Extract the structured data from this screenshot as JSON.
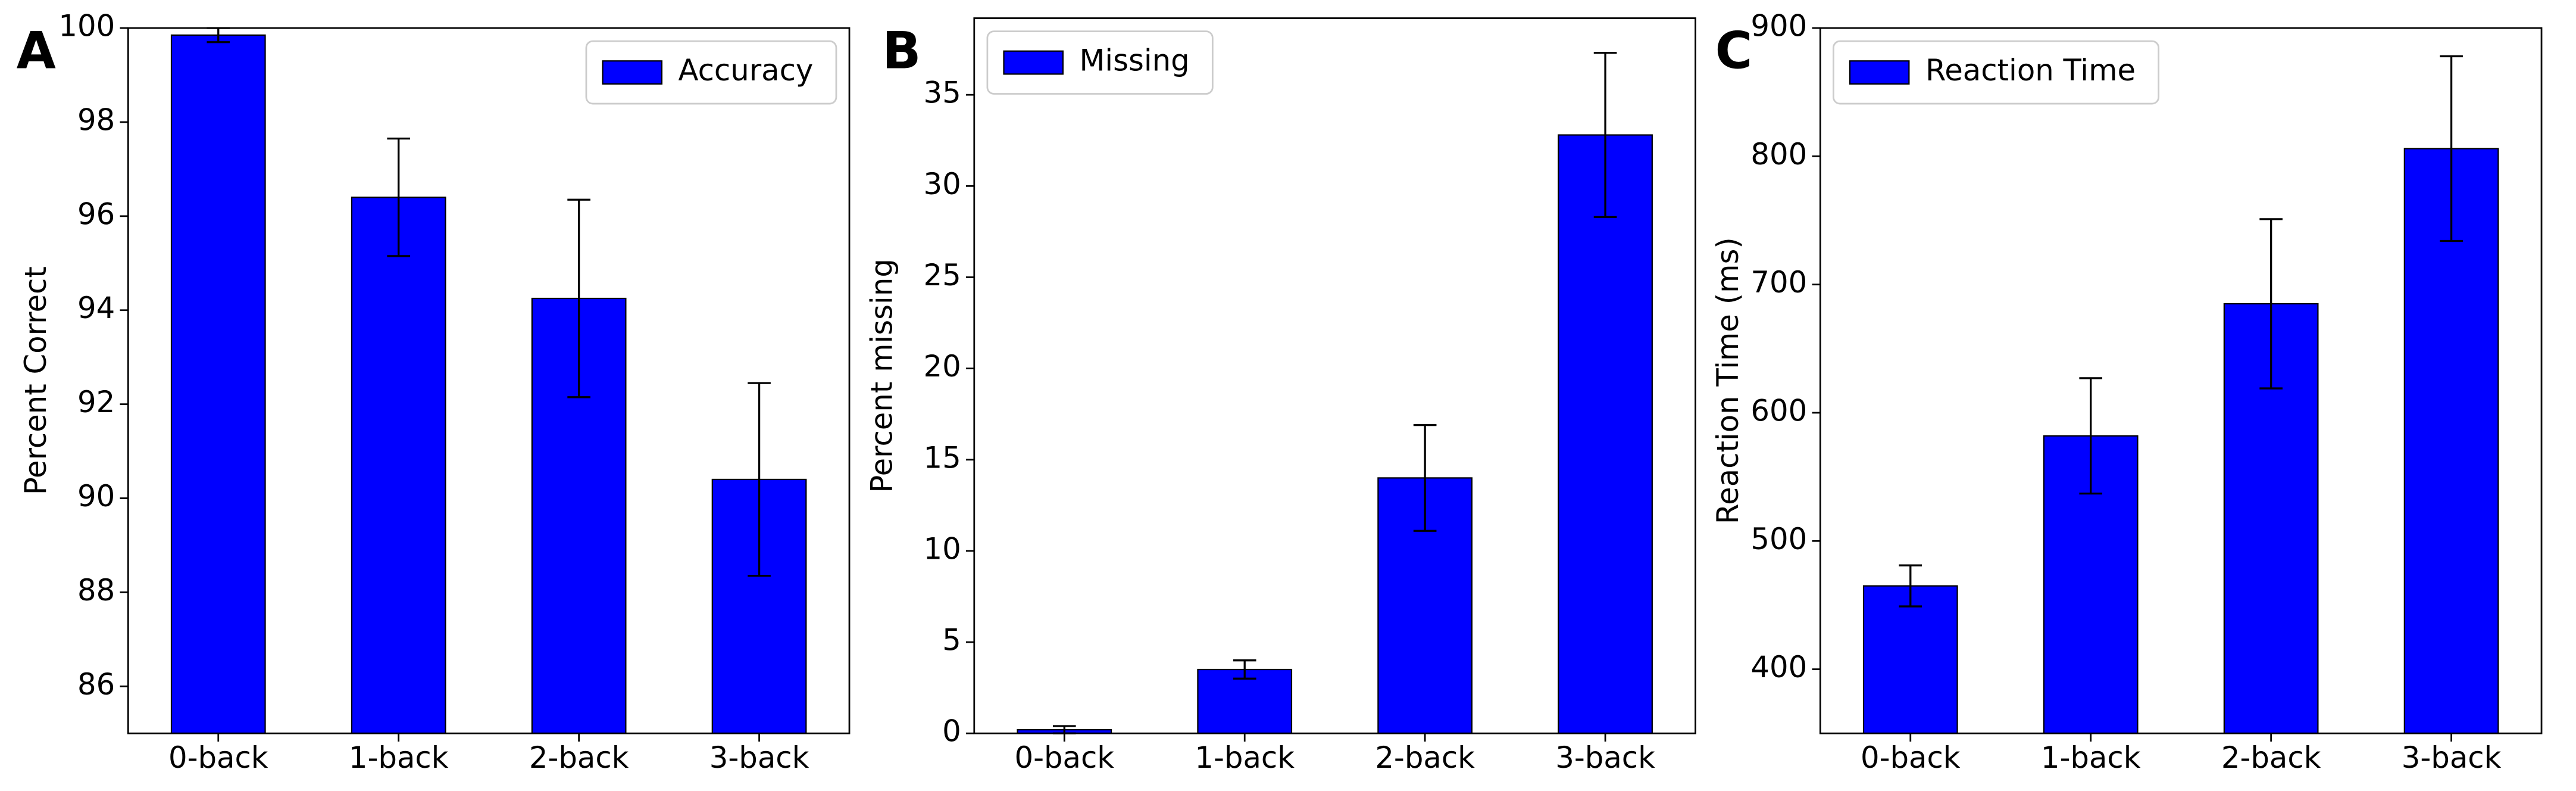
{
  "chart_data": [
    {
      "type": "bar",
      "panel_label": "A",
      "ylabel": "Percent Correct",
      "categories": [
        "0-back",
        "1-back",
        "2-back",
        "3-back"
      ],
      "series": [
        {
          "name": "Accuracy",
          "color": "#0000ff",
          "values": [
            99.85,
            96.4,
            94.25,
            90.4
          ],
          "errors": [
            0.15,
            1.25,
            2.1,
            2.05
          ]
        }
      ],
      "ylim": [
        85,
        100
      ],
      "yticks": [
        86,
        88,
        90,
        92,
        94,
        96,
        98,
        100
      ],
      "legend": "upper right"
    },
    {
      "type": "bar",
      "panel_label": "B",
      "ylabel": "Percent missing",
      "categories": [
        "0-back",
        "1-back",
        "2-back",
        "3-back"
      ],
      "series": [
        {
          "name": "Missing",
          "color": "#0000ff",
          "values": [
            0.2,
            3.5,
            14,
            32.8
          ],
          "errors": [
            0.2,
            0.5,
            2.9,
            4.5
          ]
        }
      ],
      "ylim": [
        0,
        39.2
      ],
      "yticks": [
        0,
        5,
        10,
        15,
        20,
        25,
        30,
        35
      ],
      "legend": "upper left"
    },
    {
      "type": "bar",
      "panel_label": "C",
      "ylabel": "Reaction Time (ms)",
      "categories": [
        "0-back",
        "1-back",
        "2-back",
        "3-back"
      ],
      "series": [
        {
          "name": "Reaction Time",
          "color": "#0000ff",
          "values": [
            465,
            582,
            685,
            806
          ],
          "errors": [
            16,
            45,
            66,
            72
          ]
        }
      ],
      "ylim": [
        350,
        900
      ],
      "yticks": [
        400,
        500,
        600,
        700,
        800,
        900
      ],
      "legend": "upper left"
    }
  ]
}
